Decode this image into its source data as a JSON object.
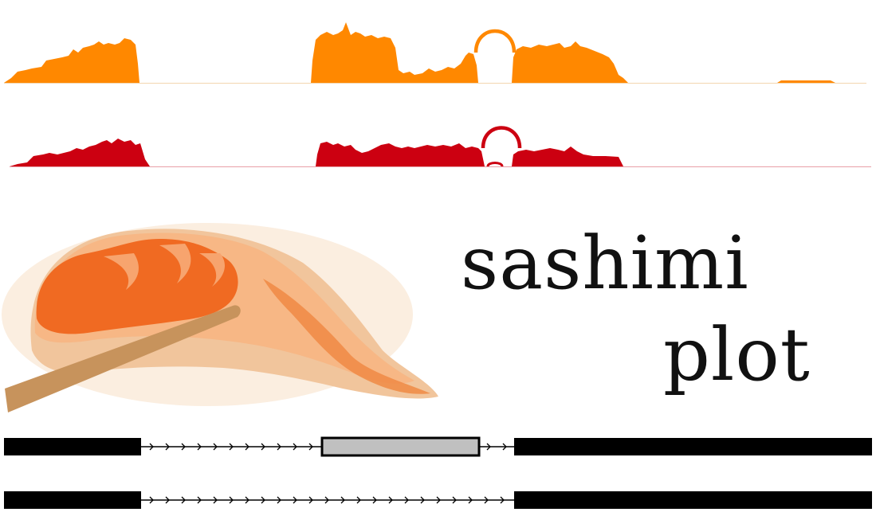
{
  "title_words": [
    "sashimi",
    "plot"
  ],
  "colors": {
    "track_top": "#ff8800",
    "track_bottom": "#cc0011",
    "exon": "#000000",
    "alt_exon_fill": "#c0c0c0",
    "intron": "#000000",
    "sushi_rice": "#f1c59c",
    "sushi_fish": "#f06a22",
    "chopstick": "#c7935c"
  },
  "illustration": {
    "subject": "sushi-nigiri-with-chopstick"
  },
  "icons": {
    "intron_arrow": "chevron-right"
  }
}
